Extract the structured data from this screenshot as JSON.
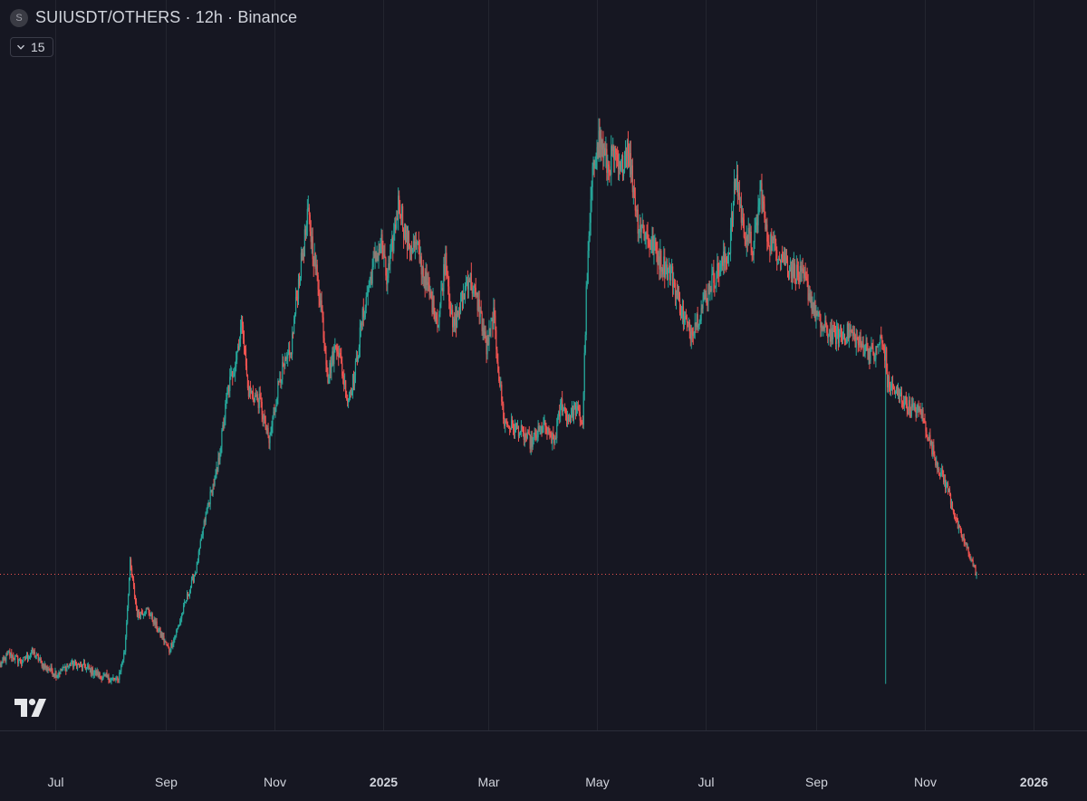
{
  "header": {
    "symbol_logo": "S",
    "title": "SUIUSDT/OTHERS · 12h · Binance",
    "collapse_count": "15",
    "collapse_icon": "chevron-down-icon"
  },
  "colors": {
    "background": "#161722",
    "up": "#26a69a",
    "down": "#ef5350",
    "grid": "#23252f",
    "price_line": "#ef5350"
  },
  "chart_data": {
    "type": "candlestick",
    "interval": "12h",
    "x_range": [
      "2024-05-31",
      "2026-01-31"
    ],
    "y_scale": "relative (no price axis shown)",
    "y_range": [
      0,
      100
    ],
    "grid": "vertical lines at month ticks",
    "current_value_line": 22.4,
    "x_ticks": [
      {
        "label": "Jul",
        "date": "2024-07-01"
      },
      {
        "label": "Sep",
        "date": "2024-09-01"
      },
      {
        "label": "Nov",
        "date": "2024-11-01"
      },
      {
        "label": "2025",
        "date": "2025-01-01",
        "major": true
      },
      {
        "label": "Mar",
        "date": "2025-03-01"
      },
      {
        "label": "May",
        "date": "2025-05-01"
      },
      {
        "label": "Jul",
        "date": "2025-07-01"
      },
      {
        "label": "Sep",
        "date": "2025-09-01"
      },
      {
        "label": "Nov",
        "date": "2025-11-01"
      },
      {
        "label": "2026",
        "date": "2026-01-01",
        "major": true
      }
    ],
    "path": [
      [
        "2024-05-31",
        8.8
      ],
      [
        "2024-06-05",
        10.5
      ],
      [
        "2024-06-12",
        9.2
      ],
      [
        "2024-06-18",
        10.8
      ],
      [
        "2024-06-25",
        8.6
      ],
      [
        "2024-07-02",
        7.5
      ],
      [
        "2024-07-10",
        9.0
      ],
      [
        "2024-07-18",
        8.5
      ],
      [
        "2024-07-26",
        7.2
      ],
      [
        "2024-08-05",
        6.5
      ],
      [
        "2024-08-09",
        11.0
      ],
      [
        "2024-08-12",
        24.0
      ],
      [
        "2024-08-16",
        16.5
      ],
      [
        "2024-08-22",
        17.0
      ],
      [
        "2024-08-28",
        14.0
      ],
      [
        "2024-09-03",
        11.0
      ],
      [
        "2024-09-08",
        14.5
      ],
      [
        "2024-09-13",
        19.0
      ],
      [
        "2024-09-18",
        23.0
      ],
      [
        "2024-09-24",
        32.0
      ],
      [
        "2024-09-30",
        38.0
      ],
      [
        "2024-10-06",
        50.0
      ],
      [
        "2024-10-10",
        54.0
      ],
      [
        "2024-10-14",
        60.5
      ],
      [
        "2024-10-17",
        50.0
      ],
      [
        "2024-10-24",
        48.0
      ],
      [
        "2024-10-29",
        42.0
      ],
      [
        "2024-11-04",
        52.0
      ],
      [
        "2024-11-10",
        55.0
      ],
      [
        "2024-11-14",
        65.0
      ],
      [
        "2024-11-20",
        76.0
      ],
      [
        "2024-11-23",
        70.0
      ],
      [
        "2024-11-27",
        63.0
      ],
      [
        "2024-12-01",
        52.0
      ],
      [
        "2024-12-06",
        57.0
      ],
      [
        "2024-12-12",
        48.5
      ],
      [
        "2024-12-16",
        52.0
      ],
      [
        "2024-12-20",
        60.0
      ],
      [
        "2024-12-26",
        68.0
      ],
      [
        "2024-12-31",
        72.0
      ],
      [
        "2025-01-03",
        66.0
      ],
      [
        "2025-01-06",
        71.0
      ],
      [
        "2025-01-10",
        78.5
      ],
      [
        "2025-01-14",
        72.0
      ],
      [
        "2025-01-20",
        71.0
      ],
      [
        "2025-01-26",
        65.0
      ],
      [
        "2025-02-01",
        60.0
      ],
      [
        "2025-02-05",
        70.0
      ],
      [
        "2025-02-09",
        59.0
      ],
      [
        "2025-02-13",
        62.0
      ],
      [
        "2025-02-18",
        67.0
      ],
      [
        "2025-02-24",
        62.0
      ],
      [
        "2025-02-28",
        56.0
      ],
      [
        "2025-03-04",
        61.0
      ],
      [
        "2025-03-07",
        52.0
      ],
      [
        "2025-03-10",
        45.0
      ],
      [
        "2025-03-18",
        44.0
      ],
      [
        "2025-03-25",
        42.0
      ],
      [
        "2025-04-01",
        44.5
      ],
      [
        "2025-04-07",
        42.0
      ],
      [
        "2025-04-11",
        48.0
      ],
      [
        "2025-04-15",
        45.5
      ],
      [
        "2025-04-19",
        47.0
      ],
      [
        "2025-04-23",
        45.0
      ],
      [
        "2025-04-25",
        64.0
      ],
      [
        "2025-04-28",
        80.0
      ],
      [
        "2025-05-01",
        88.0
      ],
      [
        "2025-05-04",
        86.0
      ],
      [
        "2025-05-07",
        83.0
      ],
      [
        "2025-05-10",
        85.0
      ],
      [
        "2025-05-14",
        82.0
      ],
      [
        "2025-05-18",
        87.0
      ],
      [
        "2025-05-24",
        75.0
      ],
      [
        "2025-05-31",
        72.0
      ],
      [
        "2025-06-06",
        69.0
      ],
      [
        "2025-06-12",
        67.0
      ],
      [
        "2025-06-17",
        62.0
      ],
      [
        "2025-06-22",
        58.5
      ],
      [
        "2025-06-28",
        61.5
      ],
      [
        "2025-07-04",
        66.0
      ],
      [
        "2025-07-10",
        68.5
      ],
      [
        "2025-07-14",
        70.5
      ],
      [
        "2025-07-18",
        82.0
      ],
      [
        "2025-07-22",
        74.0
      ],
      [
        "2025-07-28",
        71.0
      ],
      [
        "2025-08-01",
        80.0
      ],
      [
        "2025-08-04",
        73.0
      ],
      [
        "2025-08-10",
        71.0
      ],
      [
        "2025-08-18",
        68.0
      ],
      [
        "2025-08-26",
        66.0
      ],
      [
        "2025-09-01",
        61.0
      ],
      [
        "2025-09-05",
        59.0
      ],
      [
        "2025-09-12",
        58.0
      ],
      [
        "2025-09-20",
        58.5
      ],
      [
        "2025-09-26",
        56.5
      ],
      [
        "2025-10-04",
        55.0
      ],
      [
        "2025-10-07",
        57.5
      ],
      [
        "2025-10-10",
        55.0
      ],
      [
        "2025-10-11",
        51.0
      ],
      [
        "2025-10-14",
        50.0
      ],
      [
        "2025-10-18",
        49.0
      ],
      [
        "2025-10-24",
        47.0
      ],
      [
        "2025-10-30",
        46.5
      ],
      [
        "2025-11-04",
        42.0
      ],
      [
        "2025-11-09",
        38.0
      ],
      [
        "2025-11-14",
        35.0
      ],
      [
        "2025-11-20",
        29.0
      ],
      [
        "2025-11-25",
        26.0
      ],
      [
        "2025-11-30",
        22.4
      ]
    ],
    "wicks": [
      {
        "date": "2025-10-10",
        "low": 6.0
      }
    ]
  }
}
